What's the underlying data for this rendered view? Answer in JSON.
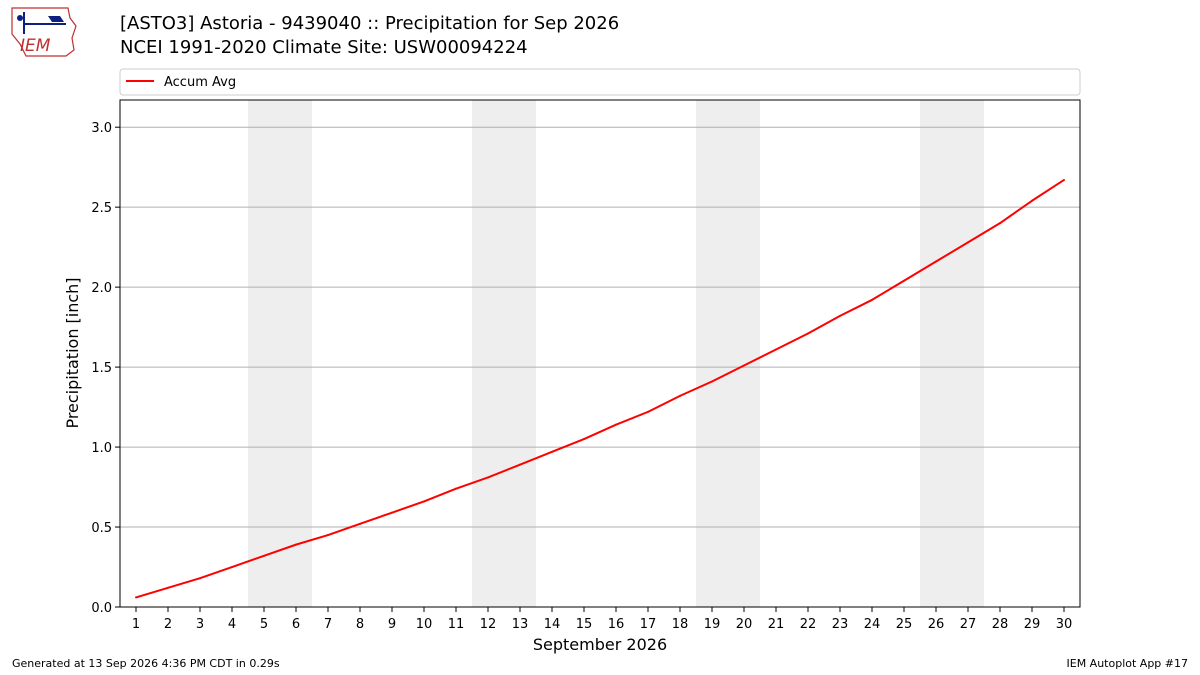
{
  "header": {
    "logo_text": "IEM",
    "title_line1": "[ASTO3] Astoria - 9439040 :: Precipitation for Sep 2026",
    "title_line2": "NCEI 1991-2020 Climate Site: USW00094224"
  },
  "footer": {
    "generated": "Generated at 13 Sep 2026 4:36 PM CDT in 0.29s",
    "app": "IEM Autoplot App #17"
  },
  "colors": {
    "series": "#ff0000",
    "weekend_band": "#eeeeee",
    "grid": "#b0b0b0"
  },
  "chart_data": {
    "type": "line",
    "title": "[ASTO3] Astoria - 9439040 :: Precipitation for Sep 2026",
    "subtitle": "NCEI 1991-2020 Climate Site: USW00094224",
    "xlabel": "September 2026",
    "ylabel": "Precipitation [inch]",
    "xlim": [
      0.5,
      30.5
    ],
    "ylim": [
      0.0,
      3.17
    ],
    "grid": "horizontal",
    "legend_position": "top-left",
    "x_ticks": [
      1,
      2,
      3,
      4,
      5,
      6,
      7,
      8,
      9,
      10,
      11,
      12,
      13,
      14,
      15,
      16,
      17,
      18,
      19,
      20,
      21,
      22,
      23,
      24,
      25,
      26,
      27,
      28,
      29,
      30
    ],
    "y_ticks": [
      0.0,
      0.5,
      1.0,
      1.5,
      2.0,
      2.5,
      3.0
    ],
    "y_tick_labels": [
      "0.0",
      "0.5",
      "1.0",
      "1.5",
      "2.0",
      "2.5",
      "3.0"
    ],
    "weekend_bands": [
      [
        4.5,
        6.5
      ],
      [
        11.5,
        13.5
      ],
      [
        18.5,
        20.5
      ],
      [
        25.5,
        27.5
      ]
    ],
    "series": [
      {
        "name": "Accum Avg",
        "color": "#ff0000",
        "x": [
          1,
          2,
          3,
          4,
          5,
          6,
          7,
          8,
          9,
          10,
          11,
          12,
          13,
          14,
          15,
          16,
          17,
          18,
          19,
          20,
          21,
          22,
          23,
          24,
          25,
          26,
          27,
          28,
          29,
          30
        ],
        "y": [
          0.06,
          0.12,
          0.18,
          0.25,
          0.32,
          0.39,
          0.45,
          0.52,
          0.59,
          0.66,
          0.74,
          0.81,
          0.89,
          0.97,
          1.05,
          1.14,
          1.22,
          1.32,
          1.41,
          1.51,
          1.61,
          1.71,
          1.82,
          1.92,
          2.04,
          2.16,
          2.28,
          2.4,
          2.54,
          2.67
        ]
      }
    ]
  }
}
